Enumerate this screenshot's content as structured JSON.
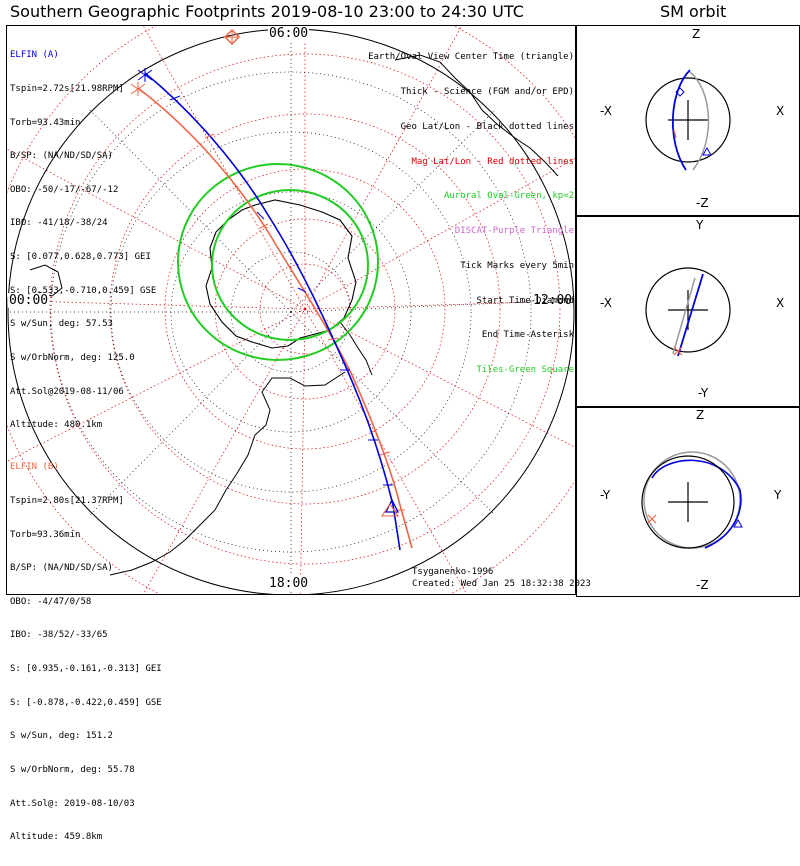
{
  "title": "Southern Geographic Footprints 2019-08-10 23:00 to 24:30 UTC",
  "orbit_title": "SM orbit",
  "time_labels": {
    "top": "06:00",
    "left": "00:00",
    "right": "12:00",
    "bottom": "18:00"
  },
  "legend": [
    {
      "text": "Earth/Oval View Center Time (triangle)",
      "color": "#000000"
    },
    {
      "text": "Thick - Science (FGM and/or EPD)",
      "color": "#000000"
    },
    {
      "text": "Geo Lat/Lon - Black dotted lines",
      "color": "#000000"
    },
    {
      "text": "Mag Lat/Lon - Red dotted lines",
      "color": "#dd0000"
    },
    {
      "text": "Auroral Oval-Green, kp=2",
      "color": "#22cc22"
    },
    {
      "text": "DISCAT-Purple Triangle",
      "color": "#cc66cc"
    },
    {
      "text": "Tick Marks every 5min",
      "color": "#000000"
    },
    {
      "text": "Start Time-Diamond",
      "color": "#000000"
    },
    {
      "text": "End Time-Asterisk",
      "color": "#000000"
    },
    {
      "text": "Tiles-Green Square",
      "color": "#22cc22"
    }
  ],
  "elfin_a": {
    "name": "ELFIN (A)",
    "color": "#0000dd",
    "lines": [
      "Tspin=2.72s[21.98RPM]",
      "Torb=93.43min",
      "B/SP: (NA/ND/SD/SA)",
      "OBO: -50/-17/-67/-12",
      "IBO: -41/18/-38/24",
      "S: [0.077,0.628,0.773] GEI",
      "S: [0.533,-0.710,0.459] GSE",
      "S w/Sun, deg: 57.53",
      "S w/OrbNorm, deg: 125.0",
      "Att.Sol@2019-08-11/06",
      "Altitude: 480.1km"
    ]
  },
  "elfin_b": {
    "name": "ELFIN (B)",
    "color": "#ee6644",
    "lines": [
      "Tspin=2.80s[21.37RPM]",
      "Torb=93.36min",
      "B/SP: (NA/ND/SD/SA)",
      "OBO: -4/47/0/58",
      "IBO: -38/52/-33/65",
      "S: [0.935,-0.161,-0.313] GEI",
      "S: [-0.878,-0.422,0.459] GSE",
      "S w/Sun, deg: 151.2",
      "S w/OrbNorm, deg: 55.78",
      "Att.Sol@: 2019-08-10/03",
      "Altitude: 459.8km"
    ]
  },
  "footer": {
    "author": "Tsyganenko-1996",
    "created": "Created: Wed Jan 25 18:32:38 2023"
  },
  "orbit_panels": [
    {
      "top": "Z",
      "bottom": "-Z",
      "left": "-X",
      "right": "X"
    },
    {
      "top": "Y",
      "bottom": "-Y",
      "left": "-X",
      "right": "X"
    },
    {
      "top": "Z",
      "bottom": "-Z",
      "left": "-Y",
      "right": "Y"
    }
  ],
  "colors": {
    "elfin_a": "#0000dd",
    "elfin_b": "#ee6644",
    "mag_grid": "#dd0000",
    "geo_grid": "#000000",
    "oval": "#22cc22",
    "orbit_grey": "#9a9a9a"
  }
}
